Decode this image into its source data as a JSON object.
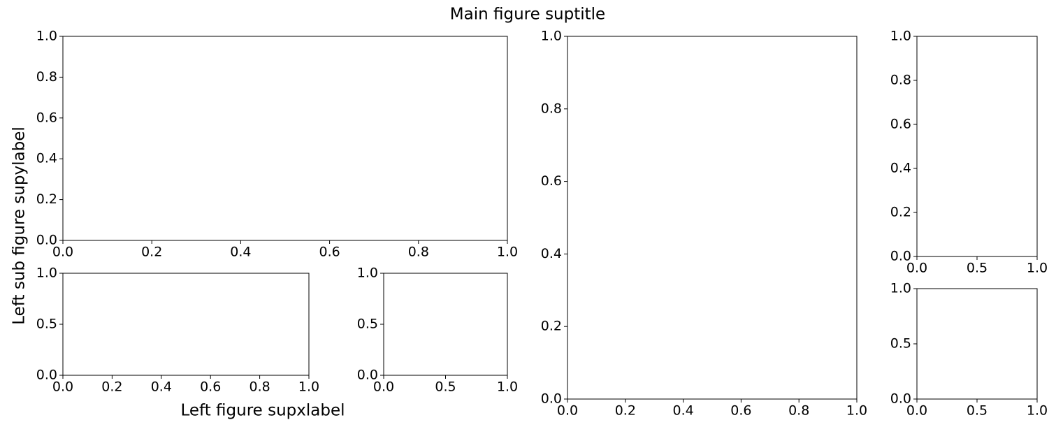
{
  "suptitle": "Main figure suptitle",
  "supylabel": "Left sub figure supylabel",
  "supxlabel": "Left figure supxlabel",
  "chart_data": [
    {
      "type": "axes",
      "xlim": [
        0,
        1
      ],
      "ylim": [
        0,
        1
      ],
      "xticks": [
        {
          "value": 0,
          "label": "0.0"
        },
        0.2,
        0.4,
        0.6,
        0.8,
        {
          "value": 1,
          "label": "1.0"
        }
      ],
      "yticks": [
        {
          "value": 0,
          "label": "0.0"
        },
        0.2,
        0.4,
        0.6,
        0.8,
        {
          "value": 1,
          "label": "1.0"
        }
      ]
    },
    {
      "type": "axes",
      "xlim": [
        0,
        1
      ],
      "ylim": [
        0,
        1
      ],
      "xticks": [
        {
          "value": 0,
          "label": "0.0"
        },
        0.2,
        0.4,
        0.6,
        0.8,
        {
          "value": 1,
          "label": "1.0"
        }
      ],
      "yticks": [
        {
          "value": 0,
          "label": "0.0"
        },
        0.5,
        {
          "value": 1,
          "label": "1.0"
        }
      ]
    },
    {
      "type": "axes",
      "xlim": [
        0,
        1
      ],
      "ylim": [
        0,
        1
      ],
      "xticks": [
        {
          "value": 0,
          "label": "0.0"
        },
        0.5,
        {
          "value": 1,
          "label": "1.0"
        }
      ],
      "yticks": [
        {
          "value": 0,
          "label": "0.0"
        },
        0.5,
        {
          "value": 1,
          "label": "1.0"
        }
      ]
    },
    {
      "type": "axes",
      "xlim": [
        0,
        1
      ],
      "ylim": [
        0,
        1
      ],
      "xticks": [
        {
          "value": 0,
          "label": "0.0"
        },
        0.2,
        0.4,
        0.6,
        0.8,
        {
          "value": 1,
          "label": "1.0"
        }
      ],
      "yticks": [
        {
          "value": 0,
          "label": "0.0"
        },
        0.2,
        0.4,
        0.6,
        0.8,
        {
          "value": 1,
          "label": "1.0"
        }
      ]
    },
    {
      "type": "axes",
      "xlim": [
        0,
        1
      ],
      "ylim": [
        0,
        1
      ],
      "xticks": [
        {
          "value": 0,
          "label": "0.0"
        },
        0.5,
        {
          "value": 1,
          "label": "1.0"
        }
      ],
      "yticks": [
        {
          "value": 0,
          "label": "0.0"
        },
        0.2,
        0.4,
        0.6,
        0.8,
        {
          "value": 1,
          "label": "1.0"
        }
      ]
    },
    {
      "type": "axes",
      "xlim": [
        0,
        1
      ],
      "ylim": [
        0,
        1
      ],
      "xticks": [
        {
          "value": 0,
          "label": "0.0"
        },
        0.5,
        {
          "value": 1,
          "label": "1.0"
        }
      ],
      "yticks": [
        {
          "value": 0,
          "label": "0.0"
        },
        0.5,
        {
          "value": 1,
          "label": "1.0"
        }
      ]
    }
  ]
}
